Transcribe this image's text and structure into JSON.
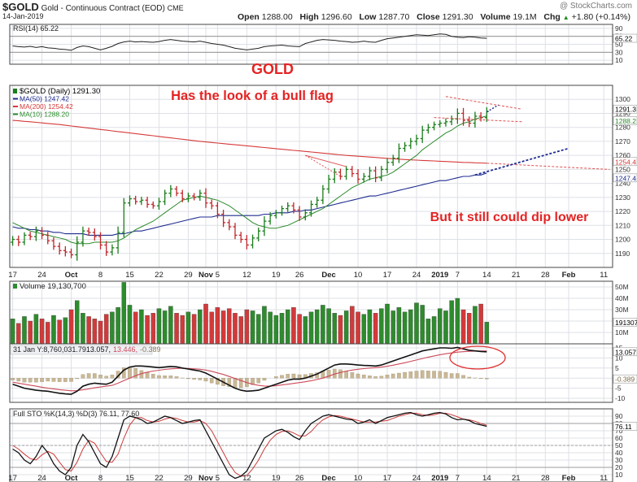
{
  "header": {
    "symbol": "$GOLD",
    "name": "Gold - Continuous Contract (EOD)",
    "exchange": "CME",
    "date": "14-Jan-2019",
    "credit": "@ StockCharts.com",
    "quote": [
      {
        "label": "Open",
        "value": "1288.00"
      },
      {
        "label": "High",
        "value": "1296.60"
      },
      {
        "label": "Low",
        "value": "1287.70"
      },
      {
        "label": "Close",
        "value": "1291.30"
      },
      {
        "label": "Volume",
        "value": "19.1M"
      },
      {
        "label": "Chg",
        "value": "+1.80 (+0.14%)"
      }
    ],
    "chg_arrow": "▲"
  },
  "x_axis": {
    "labels": [
      {
        "text": "17",
        "i": 0
      },
      {
        "text": "24",
        "i": 5
      },
      {
        "text": "Oct",
        "i": 10,
        "bold": true
      },
      {
        "text": "8",
        "i": 15
      },
      {
        "text": "15",
        "i": 20
      },
      {
        "text": "22",
        "i": 25
      },
      {
        "text": "29",
        "i": 30
      },
      {
        "text": "Nov",
        "i": 33,
        "bold": true
      },
      {
        "text": "5",
        "i": 35
      },
      {
        "text": "12",
        "i": 40
      },
      {
        "text": "19",
        "i": 45
      },
      {
        "text": "26",
        "i": 49
      },
      {
        "text": "Dec",
        "i": 54,
        "bold": true
      },
      {
        "text": "10",
        "i": 59
      },
      {
        "text": "17",
        "i": 64
      },
      {
        "text": "24",
        "i": 69
      },
      {
        "text": "2019",
        "i": 73,
        "bold": true
      },
      {
        "text": "7",
        "i": 76
      },
      {
        "text": "14",
        "i": 81
      },
      {
        "text": "21",
        "i": 86
      },
      {
        "text": "28",
        "i": 91
      },
      {
        "text": "Feb",
        "i": 95,
        "bold": true
      },
      {
        "text": "11",
        "i": 101
      }
    ],
    "total_slots": 103
  },
  "chart_data": [
    {
      "type": "line",
      "panel": "rsi",
      "legend": "RSI(14) 65.22",
      "last_value": "65.22",
      "ylim": [
        0,
        100
      ],
      "ticks": [
        90,
        70,
        50,
        30,
        10
      ],
      "levels": [
        70,
        30
      ],
      "values": [
        46,
        44,
        43,
        45,
        42,
        44,
        41,
        40,
        38,
        37,
        35,
        42,
        46,
        44,
        40,
        36,
        40,
        45,
        52,
        56,
        58,
        56,
        57,
        56,
        55,
        57,
        60,
        62,
        60,
        58,
        57,
        56,
        58,
        55,
        52,
        50,
        48,
        44,
        40,
        38,
        36,
        38,
        40,
        44,
        46,
        47,
        48,
        46,
        45,
        44,
        52,
        56,
        60,
        62,
        61,
        60,
        58,
        57,
        55,
        56,
        58,
        56,
        55,
        60,
        64,
        66,
        68,
        70,
        72,
        74,
        73,
        72,
        74,
        76,
        75,
        70,
        68,
        67,
        69,
        68,
        66,
        65
      ]
    },
    {
      "type": "candlestick",
      "panel": "price",
      "title": "GOLD",
      "annotations": [
        "Has the look of a bull flag",
        "But it still could dip lower"
      ],
      "legend": [
        {
          "text": "$GOLD (Daily) 1291.30",
          "color": "#000000"
        },
        {
          "text": "MA(50) 1247.42",
          "color": "#1f2c8f"
        },
        {
          "text": "MA(200) 1254.42",
          "color": "#d63a3a"
        },
        {
          "text": "MA(10) 1288.20",
          "color": "#2a8a2a"
        }
      ],
      "ylim": [
        1180,
        1310
      ],
      "ticks": [
        1300,
        1290,
        1280,
        1270,
        1260,
        1250,
        1240,
        1230,
        1220,
        1210,
        1200,
        1190
      ],
      "last_labels": [
        "1291.3",
        "1288.2",
        "1254.4",
        "1247.4"
      ],
      "close": [
        1200,
        1198,
        1203,
        1202,
        1206,
        1203,
        1199,
        1195,
        1192,
        1191,
        1189,
        1198,
        1206,
        1205,
        1202,
        1196,
        1191,
        1194,
        1205,
        1226,
        1229,
        1227,
        1228,
        1225,
        1224,
        1227,
        1233,
        1236,
        1233,
        1229,
        1231,
        1230,
        1233,
        1226,
        1224,
        1218,
        1212,
        1209,
        1203,
        1200,
        1196,
        1201,
        1206,
        1213,
        1217,
        1219,
        1222,
        1224,
        1221,
        1216,
        1219,
        1225,
        1228,
        1236,
        1243,
        1248,
        1245,
        1250,
        1247,
        1243,
        1245,
        1249,
        1244,
        1250,
        1255,
        1258,
        1265,
        1267,
        1270,
        1272,
        1278,
        1280,
        1282,
        1283,
        1284,
        1286,
        1290,
        1285,
        1283,
        1288,
        1287,
        1291.3
      ],
      "spread": [
        7,
        8,
        6,
        7,
        9,
        8,
        7,
        7,
        8,
        9,
        7,
        12,
        9,
        7,
        8,
        9,
        8,
        7,
        12,
        10,
        7,
        6,
        7,
        7,
        6,
        8,
        7,
        8,
        6,
        7,
        7,
        6,
        7,
        10,
        7,
        8,
        9,
        7,
        8,
        7,
        9,
        7,
        7,
        10,
        7,
        6,
        6,
        7,
        7,
        8,
        7,
        8,
        7,
        8,
        9,
        8,
        7,
        7,
        7,
        9,
        7,
        8,
        9,
        7,
        8,
        7,
        10,
        7,
        7,
        8,
        9,
        7,
        6,
        6,
        7,
        7,
        10,
        11,
        8,
        9,
        8,
        8.9
      ],
      "ma50": [
        1209,
        1208,
        1208,
        1207,
        1207,
        1206,
        1206,
        1205,
        1205,
        1204,
        1204,
        1204,
        1204,
        1203,
        1203,
        1203,
        1203,
        1203,
        1204,
        1204,
        1205,
        1206,
        1206,
        1207,
        1208,
        1209,
        1210,
        1211,
        1212,
        1213,
        1214,
        1215,
        1216,
        1216,
        1216,
        1217,
        1217,
        1217,
        1217,
        1217,
        1217,
        1217,
        1217,
        1218,
        1218,
        1219,
        1219,
        1219,
        1220,
        1220,
        1221,
        1221,
        1222,
        1223,
        1224,
        1225,
        1226,
        1227,
        1228,
        1229,
        1230,
        1231,
        1231,
        1232,
        1233,
        1234,
        1235,
        1236,
        1237,
        1238,
        1239,
        1240,
        1241,
        1242,
        1242,
        1243,
        1244,
        1245,
        1245,
        1246,
        1246,
        1247.4
      ],
      "ma200": [
        1285,
        1284.7,
        1284.3,
        1284,
        1283.6,
        1283.2,
        1282.8,
        1282.4,
        1282,
        1281.5,
        1281,
        1280.5,
        1280,
        1279.5,
        1279,
        1278.5,
        1278,
        1277.5,
        1277,
        1276.5,
        1276,
        1275.5,
        1275,
        1274.5,
        1274,
        1273.5,
        1273,
        1272.5,
        1272,
        1271.5,
        1271,
        1270.5,
        1270,
        1269.6,
        1269.2,
        1268.8,
        1268.4,
        1268,
        1267.6,
        1267.2,
        1266.8,
        1266.4,
        1266,
        1265.6,
        1265.2,
        1264.8,
        1264.4,
        1264,
        1263.6,
        1263.2,
        1262.8,
        1262.4,
        1262,
        1261.6,
        1261.2,
        1260.8,
        1260.4,
        1260,
        1259.7,
        1259.4,
        1259.1,
        1258.8,
        1258.5,
        1258.2,
        1257.9,
        1257.6,
        1257.3,
        1257,
        1256.8,
        1256.6,
        1256.4,
        1256.2,
        1256,
        1255.8,
        1255.6,
        1255.4,
        1255.2,
        1255,
        1254.9,
        1254.7,
        1254.6,
        1254.42
      ],
      "ma10": [
        1212,
        1210,
        1208,
        1206,
        1205,
        1204,
        1203,
        1202,
        1201,
        1200,
        1198,
        1197,
        1197,
        1197,
        1198,
        1198,
        1198,
        1198,
        1199,
        1201,
        1204,
        1207,
        1209,
        1211,
        1213,
        1216,
        1219,
        1222,
        1225,
        1228,
        1229,
        1230,
        1231,
        1230,
        1229,
        1228,
        1226,
        1224,
        1221,
        1218,
        1215,
        1212,
        1210,
        1209,
        1208,
        1208,
        1209,
        1210,
        1212,
        1214,
        1216,
        1218,
        1220,
        1222,
        1225,
        1228,
        1231,
        1234,
        1237,
        1239,
        1241,
        1243,
        1244,
        1245,
        1246,
        1248,
        1251,
        1254,
        1257,
        1260,
        1264,
        1267,
        1270,
        1273,
        1276,
        1278,
        1281,
        1283,
        1284,
        1286,
        1287,
        1288.2
      ]
    },
    {
      "type": "bar",
      "panel": "volume",
      "legend": "Volume 19,130,700",
      "last_value": "19130700",
      "ylim": [
        0,
        55
      ],
      "units": "M",
      "ticks": [
        50,
        40,
        30,
        20,
        10
      ],
      "values": [
        22,
        18,
        24,
        20,
        26,
        22,
        19,
        25,
        21,
        23,
        30,
        38,
        27,
        24,
        22,
        20,
        26,
        28,
        32,
        54,
        34,
        28,
        30,
        25,
        27,
        31,
        29,
        33,
        27,
        25,
        28,
        26,
        30,
        35,
        28,
        32,
        29,
        31,
        27,
        24,
        30,
        29,
        26,
        33,
        28,
        25,
        27,
        30,
        32,
        26,
        24,
        28,
        30,
        34,
        31,
        27,
        25,
        29,
        33,
        28,
        26,
        30,
        27,
        31,
        35,
        29,
        32,
        28,
        30,
        36,
        34,
        22,
        24,
        31,
        29,
        38,
        40,
        30,
        27,
        33,
        35,
        19.1
      ],
      "up": [
        1,
        0,
        1,
        0,
        1,
        0,
        0,
        1,
        0,
        1,
        0,
        1,
        1,
        0,
        0,
        0,
        0,
        1,
        1,
        1,
        1,
        0,
        1,
        0,
        0,
        1,
        1,
        1,
        0,
        0,
        1,
        0,
        1,
        0,
        0,
        0,
        0,
        0,
        0,
        0,
        0,
        1,
        1,
        1,
        1,
        1,
        1,
        1,
        0,
        0,
        1,
        1,
        1,
        1,
        1,
        1,
        0,
        1,
        0,
        0,
        1,
        1,
        0,
        1,
        1,
        1,
        1,
        1,
        1,
        1,
        1,
        1,
        1,
        1,
        1,
        1,
        1,
        0,
        0,
        1,
        0,
        1
      ]
    },
    {
      "type": "line",
      "panel": "pmo",
      "legend": "31 Jan Y:8,760,031.79 13.057, 13.446, -0.389",
      "legend_date": "31 Jan Y:8,760,031.79",
      "legend_values": [
        "13.057,",
        "13.446,",
        "-0.389"
      ],
      "last_labels": [
        "13.057",
        "-0.389"
      ],
      "ylim": [
        -12,
        17
      ],
      "ticks": [
        15,
        10,
        5,
        0,
        -5,
        -10
      ],
      "macd": [
        -3,
        -4,
        -5,
        -5.5,
        -6,
        -6.3,
        -6.5,
        -7,
        -7.5,
        -7.8,
        -8,
        -6.5,
        -4,
        -3,
        -2.5,
        -2.8,
        -3,
        -2,
        1,
        4,
        5.5,
        6,
        6,
        5.8,
        5.5,
        5.2,
        5.5,
        5.8,
        5.6,
        5,
        4.5,
        4,
        3.5,
        2.5,
        1,
        -0.5,
        -2,
        -3.5,
        -5,
        -6,
        -6.5,
        -6.3,
        -6,
        -5,
        -4,
        -3,
        -2,
        -1,
        -0.5,
        -0.5,
        0,
        1,
        2,
        3.5,
        5,
        6.5,
        7,
        7,
        6.8,
        6.5,
        6.3,
        6.2,
        6,
        6.5,
        7.5,
        8.5,
        9.5,
        10.5,
        11.5,
        12.5,
        13.5,
        14,
        14.5,
        15,
        15,
        14.8,
        15.2,
        14.5,
        13.8,
        13.5,
        13.2,
        13.057
      ],
      "signal": [
        -2,
        -2.5,
        -3,
        -3.5,
        -4,
        -4.5,
        -5,
        -5.3,
        -5.7,
        -6,
        -6.3,
        -6.2,
        -5.8,
        -5.3,
        -4.8,
        -4.4,
        -4,
        -3.6,
        -2.5,
        -1.2,
        0,
        1.2,
        2.2,
        3,
        3.5,
        3.9,
        4.3,
        4.6,
        4.8,
        4.9,
        4.8,
        4.6,
        4.4,
        4,
        3.4,
        2.6,
        1.8,
        0.8,
        -0.2,
        -1.2,
        -2.2,
        -3,
        -3.6,
        -3.9,
        -4,
        -3.8,
        -3.4,
        -3,
        -2.6,
        -2.2,
        -1.8,
        -1.3,
        -0.7,
        0,
        1,
        2,
        2.8,
        3.5,
        4,
        4.4,
        4.7,
        5,
        5.2,
        5.5,
        5.9,
        6.4,
        7,
        7.6,
        8.3,
        9,
        9.7,
        10.4,
        11,
        11.6,
        12.1,
        12.5,
        12.9,
        13.1,
        13.3,
        13.4,
        13.44,
        13.446
      ],
      "hist": [
        -1,
        -1.5,
        -2,
        -2,
        -2,
        -1.8,
        -1.5,
        -1.7,
        -1.8,
        -1.8,
        -1.7,
        -0.3,
        1.8,
        2.3,
        2.3,
        1.6,
        1,
        1.6,
        3.5,
        5.2,
        5.5,
        4.8,
        3.8,
        2.8,
        2,
        1.3,
        1.2,
        1.2,
        0.8,
        0.1,
        -0.3,
        -0.6,
        -0.9,
        -1.5,
        -2.4,
        -3.1,
        -3.8,
        -4.3,
        -4.8,
        -4.8,
        -4.3,
        -3.3,
        -2.4,
        -1.1,
        0,
        0.8,
        1.4,
        2,
        2.1,
        1.7,
        1.8,
        2.3,
        2.7,
        3.5,
        4,
        4.5,
        4.2,
        3.5,
        2.8,
        2.1,
        1.6,
        1.2,
        0.8,
        1,
        1.6,
        2.1,
        2.5,
        2.9,
        3.2,
        3.5,
        3.8,
        3.6,
        3.5,
        3.4,
        2.9,
        2.3,
        2.3,
        1.4,
        0.5,
        0.1,
        -0.24,
        -0.389
      ]
    },
    {
      "type": "line",
      "panel": "sto",
      "legend": "Full STO %K(14,3) %D(3) 76.11, 77.60",
      "last_value": "76.11",
      "ylim": [
        0,
        100
      ],
      "ticks": [
        90,
        80,
        70,
        60,
        50,
        40,
        30,
        20,
        10
      ],
      "levels": [
        80,
        50,
        20
      ],
      "k": [
        45,
        40,
        30,
        25,
        35,
        50,
        40,
        25,
        15,
        10,
        20,
        50,
        65,
        55,
        40,
        25,
        20,
        35,
        60,
        85,
        90,
        88,
        85,
        80,
        82,
        86,
        90,
        88,
        84,
        80,
        82,
        84,
        85,
        70,
        55,
        40,
        25,
        10,
        5,
        8,
        15,
        30,
        45,
        60,
        65,
        70,
        72,
        68,
        62,
        58,
        70,
        80,
        85,
        90,
        92,
        90,
        88,
        86,
        85,
        80,
        82,
        85,
        80,
        84,
        88,
        90,
        92,
        94,
        95,
        92,
        90,
        92,
        94,
        95,
        93,
        88,
        85,
        86,
        84,
        80,
        78,
        76.11
      ],
      "d": [
        50,
        45,
        38,
        32,
        30,
        37,
        42,
        38,
        27,
        17,
        15,
        27,
        45,
        57,
        53,
        40,
        28,
        27,
        38,
        60,
        78,
        88,
        88,
        84,
        82,
        83,
        86,
        88,
        87,
        84,
        82,
        82,
        84,
        80,
        70,
        55,
        40,
        25,
        13,
        8,
        9,
        18,
        30,
        45,
        57,
        65,
        69,
        70,
        67,
        63,
        63,
        69,
        78,
        85,
        89,
        91,
        90,
        88,
        86,
        84,
        82,
        82,
        82,
        83,
        84,
        87,
        90,
        92,
        94,
        94,
        92,
        91,
        92,
        94,
        94,
        92,
        89,
        86,
        85,
        83,
        80,
        77.6
      ]
    }
  ]
}
